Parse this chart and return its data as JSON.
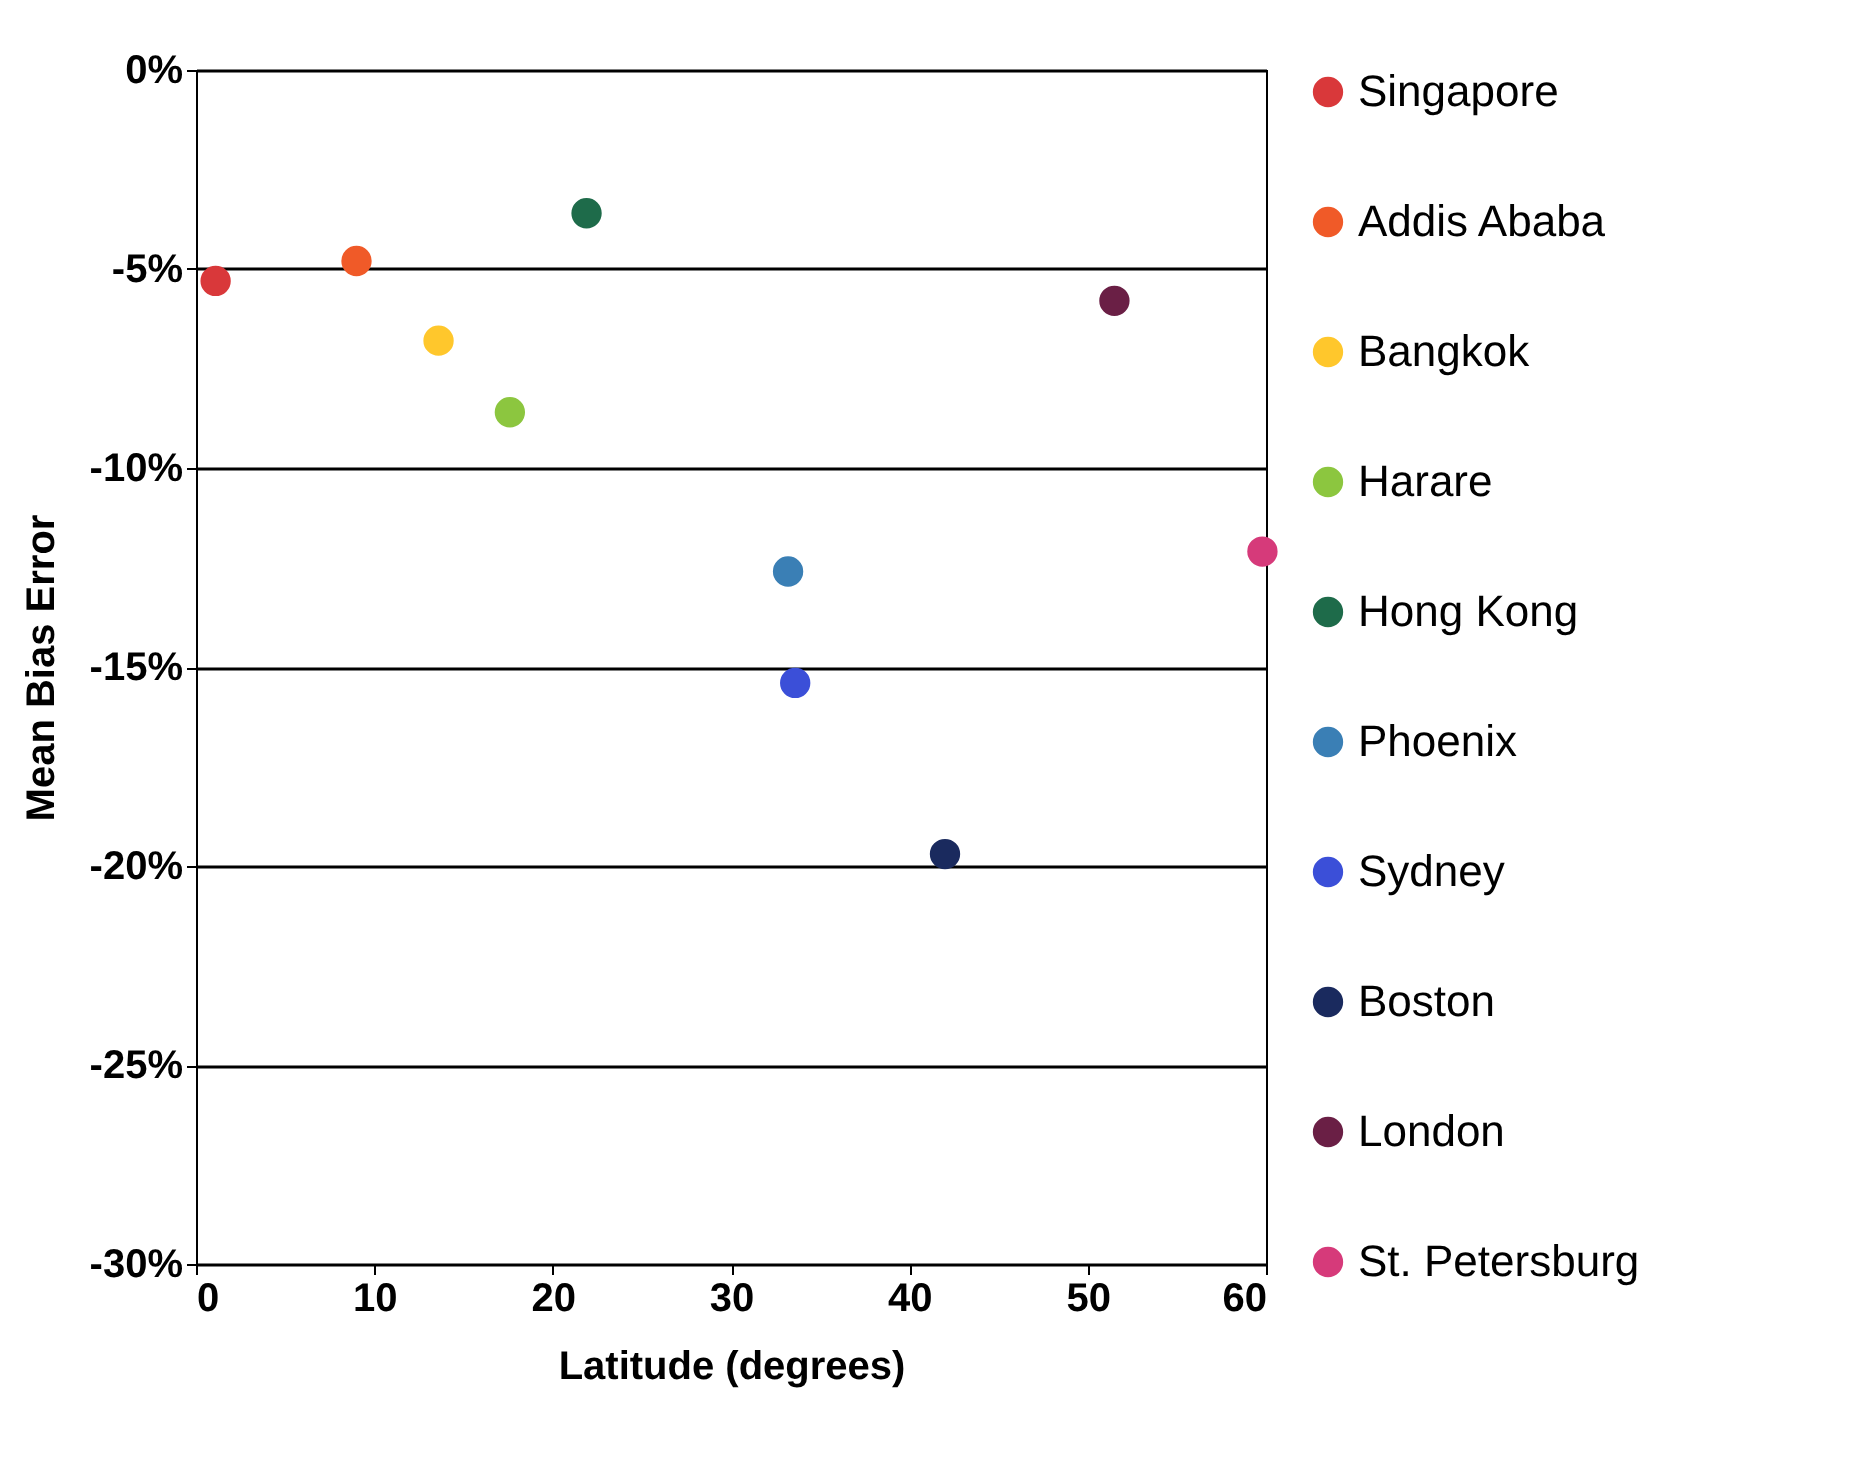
{
  "chart_data": {
    "type": "scatter",
    "xlabel": "Latitude (degrees)",
    "ylabel": "Mean Bias Error",
    "xlim": [
      0,
      60
    ],
    "xticks": [
      0,
      10,
      20,
      30,
      40,
      50,
      60
    ],
    "ylim": [
      -30,
      0
    ],
    "yticks": [
      {
        "value": -30,
        "label": "-30%"
      },
      {
        "value": -25,
        "label": "-25%"
      },
      {
        "value": -20,
        "label": "-20%"
      },
      {
        "value": -15,
        "label": "-15%"
      },
      {
        "value": -10,
        "label": "-10%"
      },
      {
        "value": -5,
        "label": "-5%"
      },
      {
        "value": 0,
        "label": "0%"
      }
    ],
    "grid": "y",
    "legend": "right",
    "marker": "circle",
    "series": [
      {
        "name": "Singapore",
        "color": "#d9383a",
        "x": [
          1.1
        ],
        "values": [
          -5.3
        ]
      },
      {
        "name": "Addis Ababa",
        "color": "#f05a28",
        "x": [
          9.0
        ],
        "values": [
          -4.8
        ]
      },
      {
        "name": "Bangkok",
        "color": "#ffc72c",
        "x": [
          13.6
        ],
        "values": [
          -6.8
        ]
      },
      {
        "name": "Harare",
        "color": "#8cc63f",
        "x": [
          17.6
        ],
        "values": [
          -8.6
        ]
      },
      {
        "name": "Hong Kong",
        "color": "#1e6b4a",
        "x": [
          21.9
        ],
        "values": [
          -3.6
        ]
      },
      {
        "name": "Phoenix",
        "color": "#3a7fb5",
        "x": [
          33.2
        ],
        "values": [
          -12.6
        ]
      },
      {
        "name": "Sydney",
        "color": "#3b4fd8",
        "x": [
          33.6
        ],
        "values": [
          -15.4
        ]
      },
      {
        "name": "Boston",
        "color": "#1a2a5e",
        "x": [
          42.0
        ],
        "values": [
          -19.7
        ]
      },
      {
        "name": "London",
        "color": "#6a1f45",
        "x": [
          51.5
        ],
        "values": [
          -5.8
        ]
      },
      {
        "name": "St. Petersburg",
        "color": "#d63a7a",
        "x": [
          59.8
        ],
        "values": [
          -12.1
        ]
      }
    ]
  }
}
